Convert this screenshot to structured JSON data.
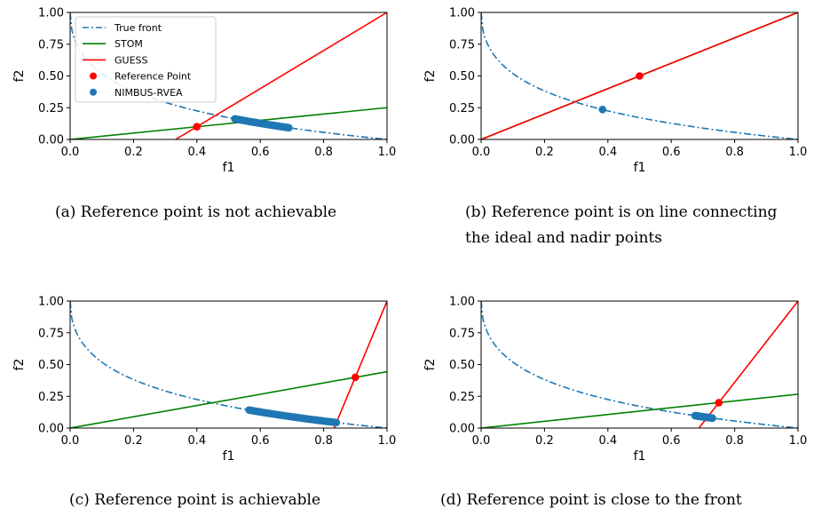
{
  "figure": {
    "legend_entries": [
      {
        "label": "True front",
        "color": "#1f77b4",
        "style": "dashdot"
      },
      {
        "label": "STOM",
        "color": "#008000",
        "style": "line"
      },
      {
        "label": "GUESS",
        "color": "#ff0000",
        "style": "line"
      },
      {
        "label": "Reference Point",
        "color": "#ff0000",
        "style": "marker"
      },
      {
        "label": "NIMBUS-RVEA",
        "color": "#1f77b4",
        "style": "marker"
      }
    ],
    "captions": [
      "(a) Reference point is not achievable",
      "(b) Reference point is on line connecting",
      "the ideal and nadir points",
      "(c) Reference point is achievable",
      "(d) Reference point is close to the front"
    ]
  },
  "chart_data": [
    {
      "type": "line",
      "panel": "a",
      "xlabel": "f1",
      "ylabel": "f2",
      "xlim": [
        0,
        1
      ],
      "ylim": [
        0,
        1
      ],
      "xticks": [
        "0.0",
        "0.2",
        "0.4",
        "0.6",
        "0.8",
        "1.0"
      ],
      "yticks": [
        "0.00",
        "0.25",
        "0.50",
        "0.75",
        "1.00"
      ],
      "legend": "top-left",
      "reference_point": [
        0.4,
        0.1
      ],
      "stom_slope": 0.25,
      "guess_line": {
        "x0": 0.333,
        "y0": 0.0,
        "x1": 1.0,
        "y1": 1.0
      },
      "nimbus_range": [
        0.52,
        0.69
      ]
    },
    {
      "type": "line",
      "panel": "b",
      "xlabel": "f1",
      "ylabel": "f2",
      "xlim": [
        0,
        1
      ],
      "ylim": [
        0,
        1
      ],
      "xticks": [
        "0.0",
        "0.2",
        "0.4",
        "0.6",
        "0.8",
        "1.0"
      ],
      "yticks": [
        "0.00",
        "0.25",
        "0.50",
        "0.75",
        "1.00"
      ],
      "legend": "none",
      "reference_point": [
        0.5,
        0.5
      ],
      "stom_slope": 1.0,
      "guess_line": {
        "x0": 0.0,
        "y0": 0.0,
        "x1": 1.0,
        "y1": 1.0
      },
      "nimbus_range": [
        0.383,
        0.383
      ]
    },
    {
      "type": "line",
      "panel": "c",
      "xlabel": "f1",
      "ylabel": "f2",
      "xlim": [
        0,
        1
      ],
      "ylim": [
        0,
        1
      ],
      "xticks": [
        "0.0",
        "0.2",
        "0.4",
        "0.6",
        "0.8",
        "1.0"
      ],
      "yticks": [
        "0.00",
        "0.25",
        "0.50",
        "0.75",
        "1.00"
      ],
      "legend": "none",
      "reference_point": [
        0.9,
        0.4
      ],
      "stom_slope": 0.444,
      "guess_line": {
        "x0": 0.833,
        "y0": 0.0,
        "x1": 1.0,
        "y1": 1.0
      },
      "nimbus_range": [
        0.565,
        0.84
      ]
    },
    {
      "type": "line",
      "panel": "d",
      "xlabel": "f1",
      "ylabel": "f2",
      "xlim": [
        0,
        1
      ],
      "ylim": [
        0,
        1
      ],
      "xticks": [
        "0.0",
        "0.2",
        "0.4",
        "0.6",
        "0.8",
        "1.0"
      ],
      "yticks": [
        "0.00",
        "0.25",
        "0.50",
        "0.75",
        "1.00"
      ],
      "legend": "none",
      "reference_point": [
        0.75,
        0.2
      ],
      "stom_slope": 0.267,
      "guess_line": {
        "x0": 0.6875,
        "y0": 0.0,
        "x1": 1.0,
        "y1": 1.0
      },
      "nimbus_range": [
        0.675,
        0.73
      ]
    }
  ]
}
